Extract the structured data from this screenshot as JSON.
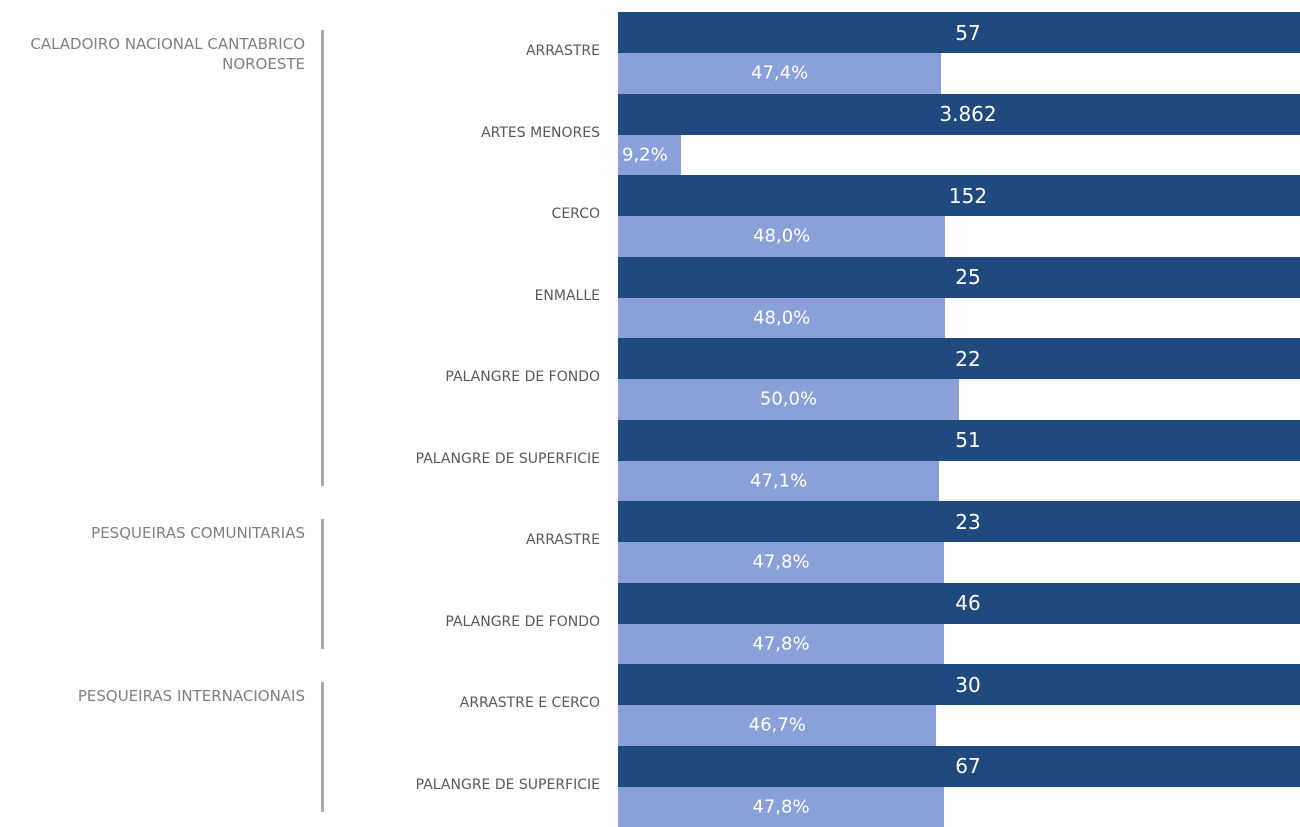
{
  "chart_data": {
    "type": "bar",
    "groups": [
      {
        "label": "CALADOIRO NACIONAL CANTABRICO NOROESTE",
        "categories": [
          "ARRASTRE",
          "ARTES MENORES",
          "CERCO",
          "ENMALLE",
          "PALANGRE DE FONDO",
          "PALANGRE DE SUPERFICIE"
        ]
      },
      {
        "label": "PESQUEIRAS COMUNITARIAS",
        "categories": [
          "ARRASTRE",
          "PALANGRE DE FONDO"
        ]
      },
      {
        "label": "PESQUEIRAS INTERNACIONAIS",
        "categories": [
          "ARRASTRE E CERCO",
          "PALANGRE DE SUPERFICIE"
        ]
      }
    ],
    "series": [
      {
        "color": "#204a7e",
        "values": [
          57,
          3862,
          152,
          25,
          22,
          51,
          23,
          46,
          30,
          67
        ],
        "value_labels": [
          "57",
          "3.862",
          "152",
          "25",
          "22",
          "51",
          "23",
          "46",
          "30",
          "67"
        ]
      },
      {
        "color": "#8aa0d8",
        "values": [
          47.4,
          9.2,
          48.0,
          48.0,
          50.0,
          47.1,
          47.8,
          47.8,
          46.7,
          47.8
        ],
        "value_labels": [
          "47,4%",
          "9,2%",
          "48,0%",
          "48,0%",
          "50,0%",
          "47,1%",
          "47,8%",
          "47,8%",
          "46,7%",
          "47,8%"
        ]
      }
    ]
  }
}
